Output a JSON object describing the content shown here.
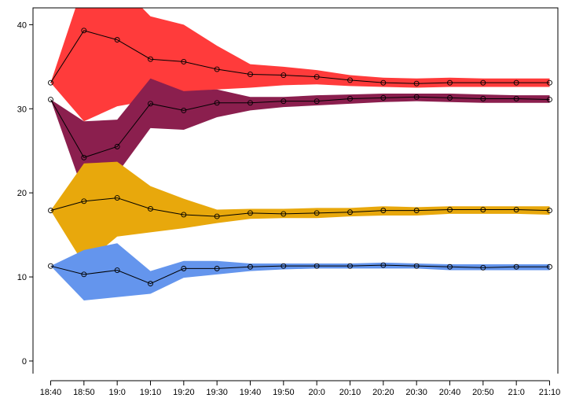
{
  "chart_data": {
    "type": "line",
    "title": "",
    "xlabel": "",
    "ylabel": "",
    "categories": [
      "18:40",
      "18:50",
      "19:0",
      "19:10",
      "19:20",
      "19:30",
      "19:40",
      "19:50",
      "20:0",
      "20:10",
      "20:20",
      "20:30",
      "20:40",
      "20:50",
      "21:0",
      "21:10"
    ],
    "ylim": [
      -1.5,
      42
    ],
    "yticks": [
      0,
      10,
      20,
      30,
      40
    ],
    "grid": false,
    "series": [
      {
        "color": "#ff3b3b",
        "values": [
          33.1,
          39.3,
          38.2,
          35.9,
          35.6,
          34.7,
          34.1,
          34.0,
          33.8,
          33.4,
          33.1,
          33.0,
          33.1,
          33.1,
          33.1,
          33.1
        ],
        "upper": [
          33.1,
          45.0,
          45.0,
          41.0,
          40.0,
          37.5,
          35.3,
          35.0,
          34.6,
          34.0,
          33.7,
          33.6,
          33.7,
          33.6,
          33.6,
          33.6
        ],
        "lower": [
          33.1,
          28.5,
          30.3,
          31.0,
          32.0,
          32.3,
          32.5,
          32.8,
          32.9,
          32.7,
          32.6,
          32.5,
          32.6,
          32.6,
          32.6,
          32.6
        ]
      },
      {
        "color": "#8b1f4e",
        "values": [
          31.1,
          24.2,
          25.5,
          30.6,
          29.8,
          30.7,
          30.7,
          30.9,
          30.9,
          31.2,
          31.3,
          31.4,
          31.3,
          31.2,
          31.2,
          31.1
        ],
        "upper": [
          31.1,
          28.5,
          28.7,
          33.6,
          32.1,
          32.3,
          31.4,
          31.4,
          31.6,
          31.7,
          31.8,
          31.8,
          31.8,
          31.7,
          31.6,
          31.6
        ],
        "lower": [
          31.1,
          19.9,
          22.3,
          27.7,
          27.5,
          29.0,
          29.8,
          30.2,
          30.4,
          30.6,
          30.8,
          30.9,
          30.8,
          30.7,
          30.7,
          30.7
        ]
      },
      {
        "color": "#e8a80c",
        "values": [
          17.9,
          19.0,
          19.4,
          18.1,
          17.4,
          17.2,
          17.6,
          17.5,
          17.6,
          17.7,
          17.9,
          17.9,
          18.0,
          18.0,
          18.0,
          17.9
        ],
        "upper": [
          17.9,
          23.5,
          23.7,
          20.8,
          19.3,
          18.0,
          18.1,
          18.1,
          18.2,
          18.2,
          18.4,
          18.3,
          18.4,
          18.4,
          18.4,
          18.4
        ],
        "lower": [
          17.9,
          11.5,
          14.8,
          15.3,
          15.8,
          16.4,
          16.9,
          17.0,
          17.0,
          17.2,
          17.3,
          17.3,
          17.5,
          17.5,
          17.5,
          17.4
        ]
      },
      {
        "color": "#6495ed",
        "values": [
          11.3,
          10.3,
          10.8,
          9.2,
          11.0,
          11.0,
          11.2,
          11.3,
          11.3,
          11.3,
          11.4,
          11.3,
          11.2,
          11.1,
          11.2,
          11.2
        ],
        "upper": [
          11.3,
          13.2,
          14.0,
          10.7,
          11.9,
          11.9,
          11.6,
          11.6,
          11.6,
          11.6,
          11.7,
          11.6,
          11.5,
          11.5,
          11.5,
          11.5
        ],
        "lower": [
          11.3,
          7.2,
          7.6,
          8.0,
          9.9,
          10.3,
          10.7,
          10.9,
          11.0,
          11.0,
          11.0,
          11.0,
          10.8,
          10.8,
          10.8,
          10.8
        ]
      }
    ]
  }
}
